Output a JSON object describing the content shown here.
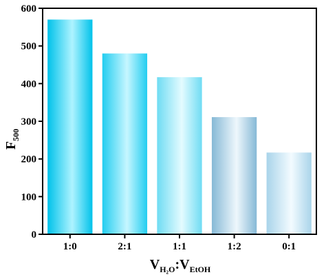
{
  "chart_data": {
    "type": "bar",
    "categories": [
      "1:0",
      "2:1",
      "1:1",
      "1:2",
      "0:1"
    ],
    "values": [
      570,
      480,
      417,
      311,
      217
    ],
    "xlabel": {
      "main": "V",
      "sub1": "H₂O",
      "sep": ":",
      "main2": "V",
      "sub2": "EtOH"
    },
    "ylabel": {
      "main": "F",
      "sub": "500"
    },
    "ylim": [
      0,
      600
    ],
    "yticks": [
      0,
      100,
      200,
      300,
      400,
      500,
      600
    ],
    "grid": false,
    "bar_colors": [
      {
        "edge": "#00c2ea",
        "mid": "#aef3ff"
      },
      {
        "edge": "#22cdf0",
        "mid": "#c6f6ff"
      },
      {
        "edge": "#6fdcf3",
        "mid": "#e4fbff"
      },
      {
        "edge": "#86b9d6",
        "mid": "#eef7fc"
      },
      {
        "edge": "#a9d4ea",
        "mid": "#f3fbff"
      }
    ]
  }
}
